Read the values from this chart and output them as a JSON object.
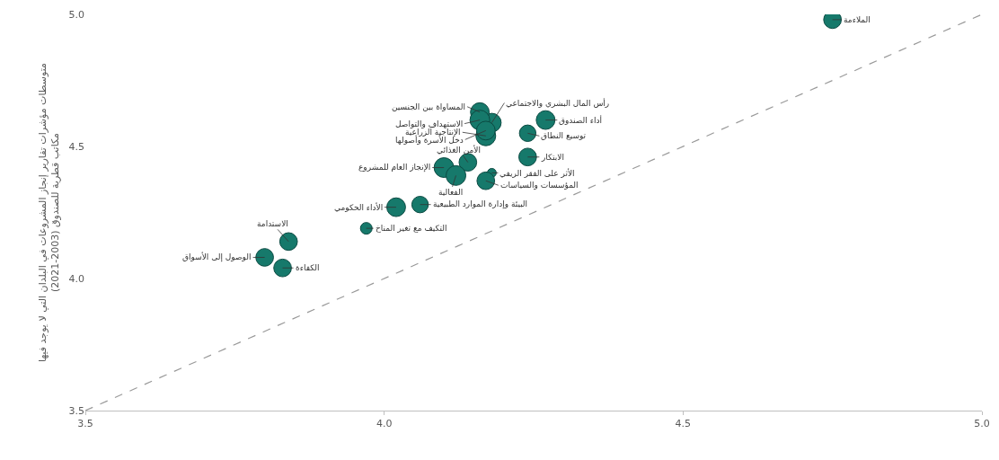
{
  "chart_data": {
    "type": "bubble",
    "ylabel": "متوسطات مؤشرات تقارير إنجاز المشروعات في البلدان التي لا يوجد فيها\nمكاتب قطرية للصندوق (2003-2021)",
    "xlim": [
      3.5,
      5.0
    ],
    "xticks": [
      {
        "value": 3.5,
        "label": "3.5"
      },
      {
        "value": 4.0,
        "label": "4.0"
      },
      {
        "value": 4.5,
        "label": "4.5"
      },
      {
        "value": 5.0,
        "label": "5.0"
      }
    ],
    "ylim": [
      3.5,
      5.0
    ],
    "yticks": [
      {
        "value": 3.5,
        "label": "3.5"
      },
      {
        "value": 4.0,
        "label": "4.0"
      },
      {
        "value": 4.5,
        "label": "4.5"
      },
      {
        "value": 5.0,
        "label": "5.0"
      }
    ],
    "marker": "circle",
    "series": [
      {
        "color": "#16796b",
        "x": [
          4.75,
          4.18,
          4.16,
          4.16,
          4.17,
          4.17,
          4.27,
          4.24,
          4.24,
          4.18,
          4.17,
          4.14,
          4.1,
          4.12,
          4.06,
          4.02,
          3.97,
          3.84,
          3.8,
          3.83
        ],
        "values": [
          4.98,
          4.59,
          4.63,
          4.6,
          4.54,
          4.56,
          4.6,
          4.55,
          4.46,
          4.4,
          4.37,
          4.44,
          4.42,
          4.39,
          4.28,
          4.27,
          4.19,
          4.14,
          4.08,
          4.04
        ],
        "sizes": [
          0.8,
          0.9,
          0.9,
          1,
          1,
          0.9,
          0.9,
          0.7,
          0.8,
          0.2,
          0.8,
          0.8,
          1,
          1,
          0.7,
          0.9,
          0.35,
          0.8,
          0.8,
          0.8
        ]
      },
      {
        "type": "line",
        "color": "#999999",
        "line_style": "dashed",
        "marker": "none",
        "x": [
          3.5,
          5.0
        ],
        "values": [
          3.5,
          5.0
        ]
      }
    ],
    "annotations": [
      {
        "text": "الملاءمة",
        "x": 4.75,
        "y": 4.98
      },
      {
        "text": "رأس المال البشري والاجتماعي",
        "x": 4.18,
        "y": 4.59
      },
      {
        "text": "المساواة بين الجنسين",
        "x": 4.16,
        "y": 4.63
      },
      {
        "text": "الاستهداف والتواصل",
        "x": 4.16,
        "y": 4.6
      },
      {
        "text": "الإنتاجية الزراعية",
        "x": 4.17,
        "y": 4.54
      },
      {
        "text": "دخل الأسرة وأصولها",
        "x": 4.17,
        "y": 4.56
      },
      {
        "text": "أداء الصندوق",
        "x": 4.27,
        "y": 4.6
      },
      {
        "text": "توسيع النطاق",
        "x": 4.24,
        "y": 4.55
      },
      {
        "text": "الابتكار",
        "x": 4.24,
        "y": 4.46
      },
      {
        "text": "الأثر على الفقر الريفي",
        "x": 4.18,
        "y": 4.4
      },
      {
        "text": "المؤسسات والسياسات",
        "x": 4.17,
        "y": 4.37
      },
      {
        "text": "الأمن الغذائي",
        "x": 4.14,
        "y": 4.44
      },
      {
        "text": "الإنجاز العام للمشروع",
        "x": 4.1,
        "y": 4.42
      },
      {
        "text": "الفعالية",
        "x": 4.12,
        "y": 4.39
      },
      {
        "text": "البيئة وإدارة الموارد الطبيعية",
        "x": 4.06,
        "y": 4.28
      },
      {
        "text": "الأداء الحكومي",
        "x": 4.02,
        "y": 4.27
      },
      {
        "text": "التكيف مع تغير المناخ",
        "x": 3.97,
        "y": 4.19
      },
      {
        "text": "الاستدامة",
        "x": 3.84,
        "y": 4.14
      },
      {
        "text": "الوصول إلى الأسواق",
        "x": 3.8,
        "y": 4.08
      },
      {
        "text": "الكفاءة",
        "x": 3.83,
        "y": 4.04
      }
    ]
  }
}
